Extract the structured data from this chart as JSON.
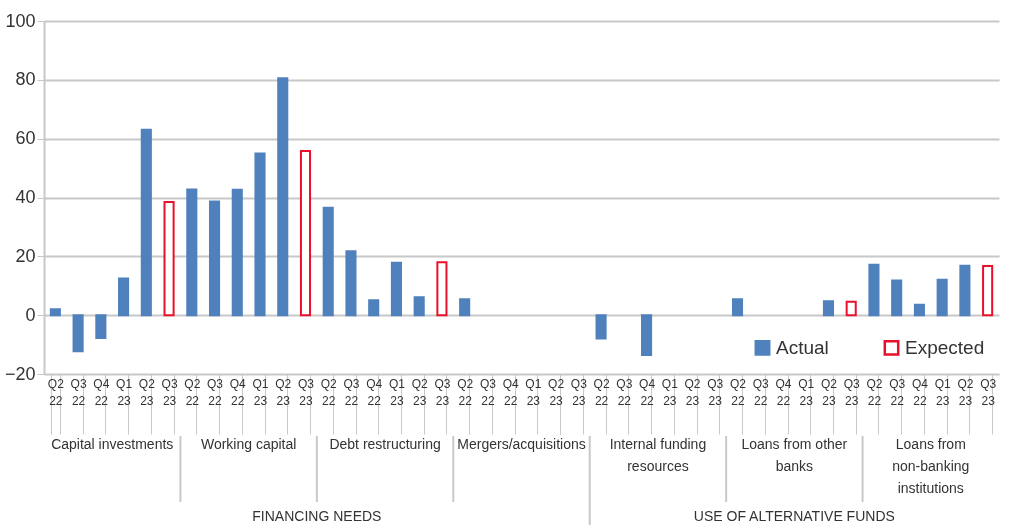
{
  "chart_data": {
    "type": "bar",
    "categories": [
      "Q2 22",
      "Q3 22",
      "Q4 22",
      "Q1 23",
      "Q2 23",
      "Q3 23",
      "Q2 22",
      "Q3 22",
      "Q4 22",
      "Q1 23",
      "Q2 23",
      "Q3 23",
      "Q2 22",
      "Q3 22",
      "Q4 22",
      "Q1 23",
      "Q2 23",
      "Q3 23",
      "Q2 22",
      "Q3 22",
      "Q4 22",
      "Q1 23",
      "Q2 23",
      "Q3 23",
      "Q2 22",
      "Q3 22",
      "Q4 22",
      "Q1 23",
      "Q2 23",
      "Q3 23",
      "Q2 22",
      "Q3 22",
      "Q4 22",
      "Q1 23",
      "Q2 23",
      "Q3 23",
      "Q2 22",
      "Q3 22",
      "Q4 22",
      "Q1 23",
      "Q2 23",
      "Q3 23"
    ],
    "series": [
      {
        "name": "Actual",
        "color": "#4f81bd",
        "values": [
          2,
          -12.3,
          -7.8,
          12.5,
          63,
          null,
          42.7,
          38.6,
          42.6,
          55,
          80.5,
          null,
          36.5,
          21.7,
          5.1,
          17.8,
          6.1,
          null,
          5.4,
          null,
          null,
          null,
          null,
          null,
          -7.9,
          null,
          -13.5,
          null,
          null,
          null,
          5.4,
          null,
          null,
          null,
          4.7,
          null,
          17.1,
          11.8,
          3.5,
          12,
          16.8,
          null
        ]
      },
      {
        "name": "Expected",
        "color": "#e8102a",
        "values": [
          null,
          null,
          null,
          null,
          null,
          38.5,
          null,
          null,
          null,
          null,
          null,
          55.8,
          null,
          null,
          null,
          null,
          null,
          18,
          null,
          null,
          null,
          null,
          null,
          null,
          null,
          null,
          null,
          null,
          null,
          null,
          null,
          null,
          null,
          null,
          null,
          4.6,
          null,
          null,
          null,
          null,
          null,
          16.7
        ]
      }
    ],
    "annotations": [
      "Capital investments",
      "Working capital",
      "Debt restructuring",
      "Mergers/acquisitions",
      "Internal funding resources",
      "Loans from other banks",
      "Loans from non-banking institutions",
      "FINANCING NEEDS",
      "USE OF ALTERNATIVE FUNDS"
    ],
    "ylim": [
      -20,
      100
    ],
    "yticks": [
      -20,
      0,
      20,
      40,
      60,
      80,
      100
    ],
    "grid": "y",
    "legend": "bottom right"
  }
}
